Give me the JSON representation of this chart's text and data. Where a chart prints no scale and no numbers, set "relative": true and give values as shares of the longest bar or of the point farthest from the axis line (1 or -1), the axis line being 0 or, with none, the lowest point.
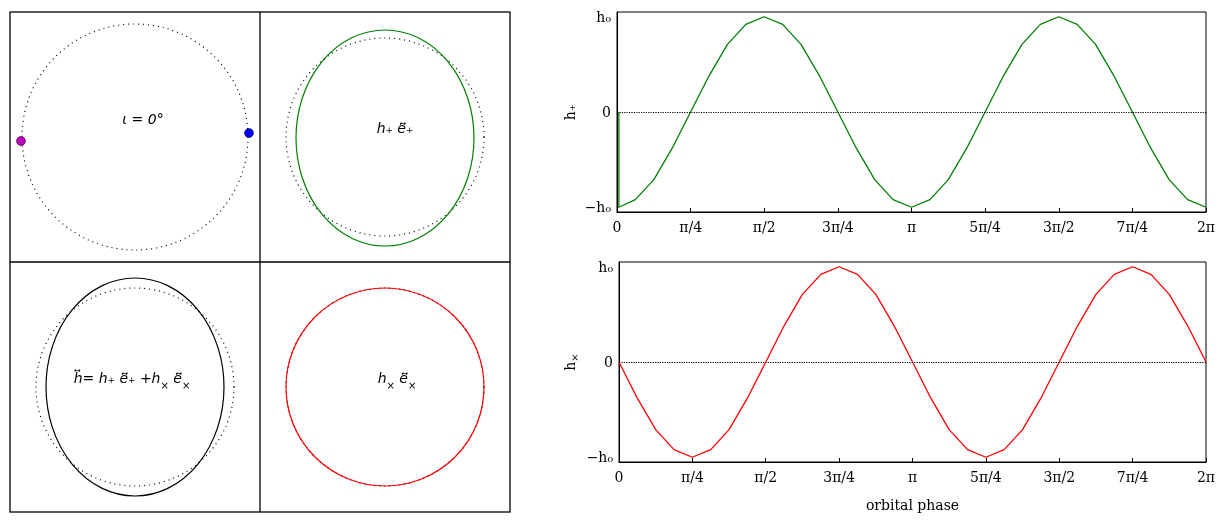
{
  "chart_data": [
    {
      "type": "other",
      "annotations": [
        "ι = 0°",
        "h₊ e⃡₊",
        "h⃡= h₊ e⃡₊ +h$_{×}$ e⃡$_{×}$",
        "h$_{×}$ e⃡$_{×}$"
      ]
    },
    {
      "type": "line",
      "ylabel": "h₊",
      "xlim": [
        0,
        6.283185
      ],
      "relative": true,
      "annotations": [
        "h₀",
        "0",
        "−h₀"
      ],
      "xticks": [
        0,
        {
          "value": 0.785398,
          "label": "π/4"
        },
        {
          "value": 1.570796,
          "label": "π/2"
        },
        {
          "value": 2.356194,
          "label": "3π/4"
        },
        {
          "value": 3.141593,
          "label": "π"
        },
        {
          "value": 3.926991,
          "label": "5π/4"
        },
        {
          "value": 4.712389,
          "label": "3π/2"
        },
        {
          "value": 5.497787,
          "label": "7π/4"
        },
        {
          "value": 6.283185,
          "label": "2π"
        }
      ],
      "ref_lines": [
        {
          "axis": "y",
          "value": 0,
          "color": "#000000",
          "line_style": "dotted"
        }
      ],
      "grid": false,
      "marker": "none",
      "line_style": "solid",
      "series": [
        {
          "color": "#008000",
          "x": [
            0.02,
            0.02,
            0.196,
            0.393,
            0.589,
            0.785,
            0.982,
            1.178,
            1.374,
            1.571,
            1.767,
            1.963,
            2.16,
            2.356,
            2.553,
            2.749,
            2.945,
            3.142,
            3.338,
            3.534,
            3.731,
            3.927,
            4.123,
            4.32,
            4.516,
            4.712,
            4.909,
            5.105,
            5.301,
            5.498,
            5.694,
            5.89,
            6.087,
            6.283
          ],
          "values": [
            0,
            -1,
            -0.92,
            -0.71,
            -0.38,
            0,
            0.38,
            0.71,
            0.92,
            1,
            0.92,
            0.71,
            0.38,
            0,
            -0.38,
            -0.71,
            -0.92,
            -1,
            -0.92,
            -0.71,
            -0.38,
            0,
            0.38,
            0.71,
            0.92,
            1,
            0.92,
            0.71,
            0.38,
            0,
            -0.38,
            -0.71,
            -0.92,
            -1
          ]
        }
      ]
    },
    {
      "type": "line",
      "ylabel": "h$_{×}$",
      "xlabel": "orbital phase",
      "xlim": [
        0,
        6.283185
      ],
      "relative": true,
      "annotations": [
        "h₀",
        "0",
        "−h₀"
      ],
      "xticks": [
        0,
        {
          "value": 0.785398,
          "label": "π/4"
        },
        {
          "value": 1.570796,
          "label": "π/2"
        },
        {
          "value": 2.356194,
          "label": "3π/4"
        },
        {
          "value": 3.141593,
          "label": "π"
        },
        {
          "value": 3.926991,
          "label": "5π/4"
        },
        {
          "value": 4.712389,
          "label": "3π/2"
        },
        {
          "value": 5.497787,
          "label": "7π/4"
        },
        {
          "value": 6.283185,
          "label": "2π"
        }
      ],
      "ref_lines": [
        {
          "axis": "y",
          "value": 0,
          "color": "#000000",
          "line_style": "dotted"
        }
      ],
      "grid": false,
      "marker": "none",
      "line_style": "solid",
      "series": [
        {
          "color": "#ff0000",
          "x": [
            0,
            0.196,
            0.393,
            0.589,
            0.785,
            0.982,
            1.178,
            1.374,
            1.571,
            1.767,
            1.963,
            2.16,
            2.356,
            2.553,
            2.749,
            2.945,
            3.142,
            3.338,
            3.534,
            3.731,
            3.927,
            4.123,
            4.32,
            4.516,
            4.712,
            4.909,
            5.105,
            5.301,
            5.498,
            5.694,
            5.89,
            6.087,
            6.283
          ],
          "values": [
            0,
            -0.38,
            -0.71,
            -0.92,
            -1,
            -0.92,
            -0.71,
            -0.38,
            0,
            0.38,
            0.71,
            0.92,
            1,
            0.92,
            0.71,
            0.38,
            0,
            -0.38,
            -0.71,
            -0.92,
            -1,
            -0.92,
            -0.71,
            -0.38,
            0,
            0.38,
            0.71,
            0.92,
            1,
            0.92,
            0.71,
            0.38,
            0
          ]
        }
      ]
    }
  ]
}
